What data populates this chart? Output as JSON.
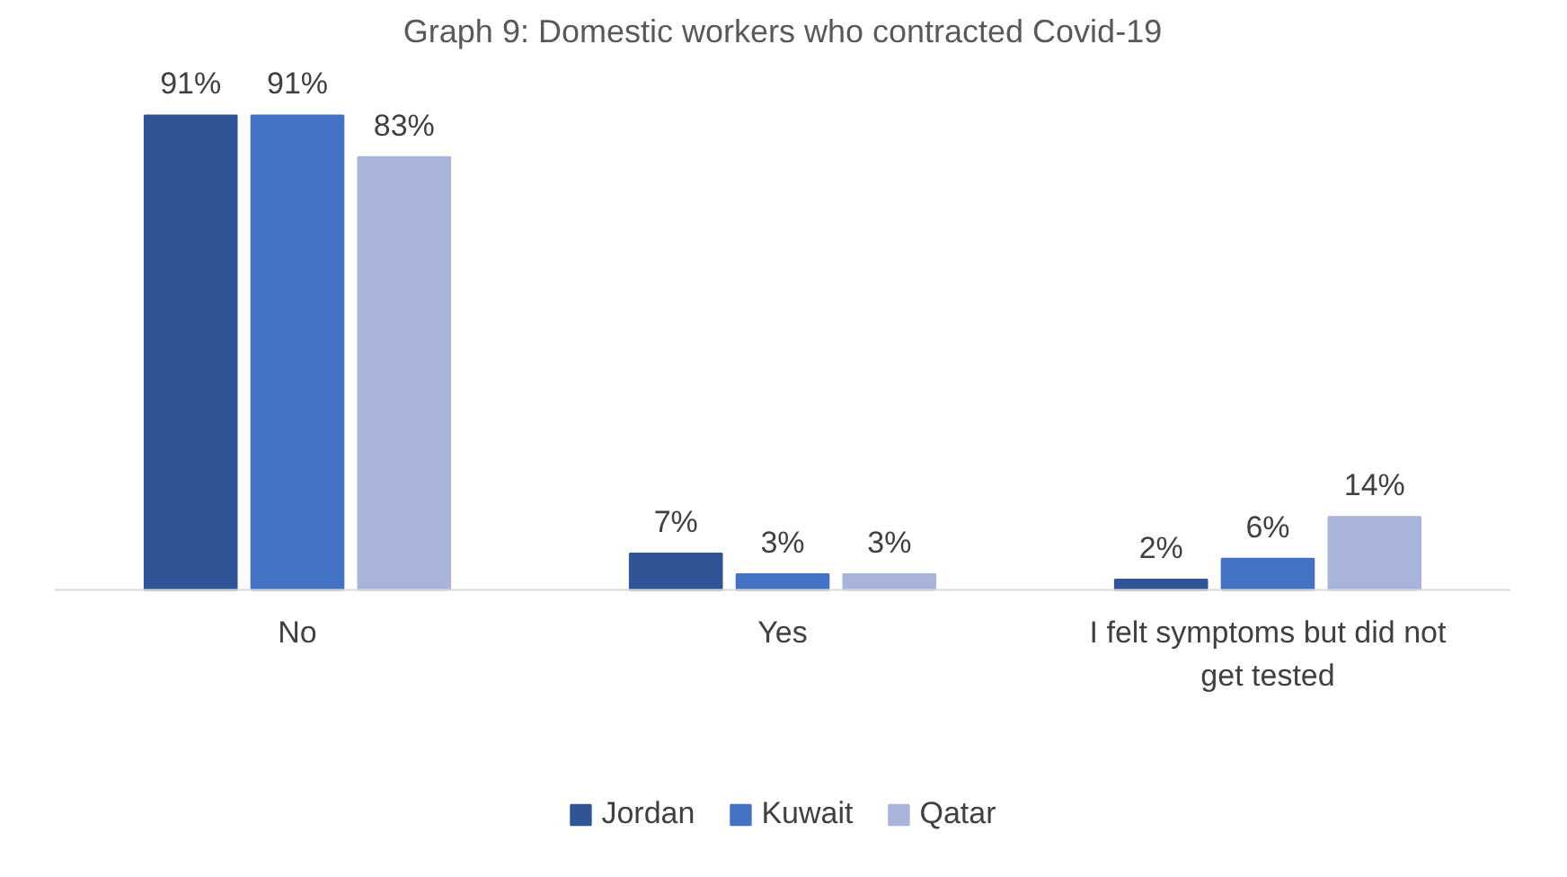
{
  "chart_data": {
    "type": "bar",
    "title": "Graph 9: Domestic workers who contracted Covid-19",
    "categories": [
      "No",
      "Yes",
      "I felt symptoms but did not get tested"
    ],
    "series": [
      {
        "name": "Jordan",
        "color": "#2f5597",
        "values": [
          91,
          7,
          2
        ],
        "value_labels": [
          "91%",
          "7%",
          "2%"
        ]
      },
      {
        "name": "Kuwait",
        "color": "#4472c4",
        "values": [
          91,
          3,
          6
        ],
        "value_labels": [
          "91%",
          "3%",
          "6%"
        ]
      },
      {
        "name": "Qatar",
        "color": "#a9b4dc",
        "values": [
          83,
          3,
          14
        ],
        "value_labels": [
          "83%",
          "3%",
          "14%"
        ]
      }
    ],
    "legend": "bottom"
  }
}
